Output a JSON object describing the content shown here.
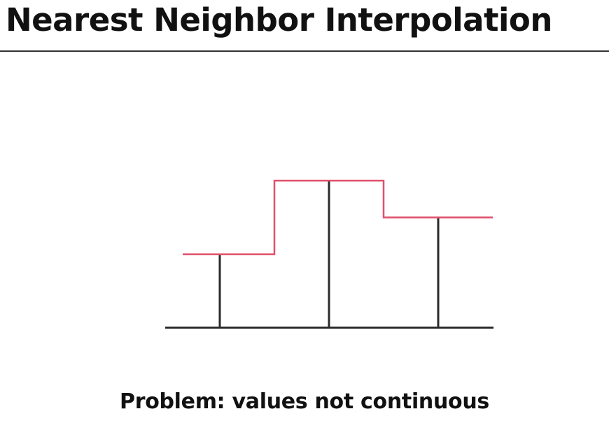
{
  "slide": {
    "title": "Nearest Neighbor Interpolation",
    "caption": "Problem: values not continuous"
  },
  "diagram": {
    "sample_values": [
      1,
      2,
      1.5
    ],
    "colors": {
      "samples": "#2b2b2b",
      "baseline": "#2b2b2b",
      "interpolant": "#e0506a"
    }
  }
}
